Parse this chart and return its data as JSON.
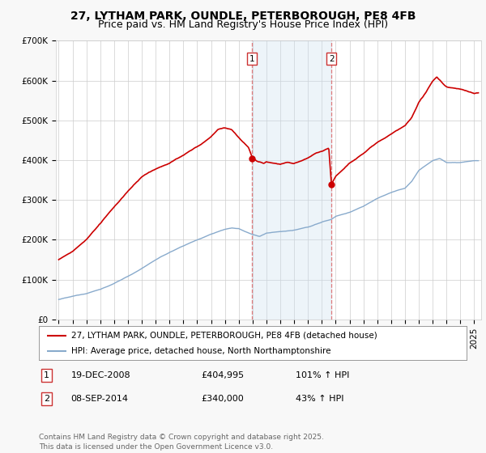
{
  "title": "27, LYTHAM PARK, OUNDLE, PETERBOROUGH, PE8 4FB",
  "subtitle": "Price paid vs. HM Land Registry's House Price Index (HPI)",
  "ylim": [
    0,
    700000
  ],
  "yticks": [
    0,
    100000,
    200000,
    300000,
    400000,
    500000,
    600000,
    700000
  ],
  "ytick_labels": [
    "£0",
    "£100K",
    "£200K",
    "£300K",
    "£400K",
    "£500K",
    "£600K",
    "£700K"
  ],
  "xlim_start": 1994.8,
  "xlim_end": 2025.5,
  "background_color": "#f8f8f8",
  "plot_bg_color": "#ffffff",
  "grid_color": "#cccccc",
  "red_line_color": "#cc0000",
  "blue_line_color": "#88aacc",
  "sale1_date": 2008.97,
  "sale1_price": 404995,
  "sale2_date": 2014.69,
  "sale2_price": 340000,
  "shade_color": "#cce0f0",
  "shade_alpha": 0.35,
  "vline_color": "#dd6666",
  "marker_box_color": "#cc3333",
  "legend_line1": "27, LYTHAM PARK, OUNDLE, PETERBOROUGH, PE8 4FB (detached house)",
  "legend_line2": "HPI: Average price, detached house, North Northamptonshire",
  "table_row1": [
    "1",
    "19-DEC-2008",
    "£404,995",
    "101% ↑ HPI"
  ],
  "table_row2": [
    "2",
    "08-SEP-2014",
    "£340,000",
    "43% ↑ HPI"
  ],
  "footnote": "Contains HM Land Registry data © Crown copyright and database right 2025.\nThis data is licensed under the Open Government Licence v3.0.",
  "title_fontsize": 10,
  "subtitle_fontsize": 9,
  "tick_fontsize": 7.5,
  "legend_fontsize": 7.5,
  "table_fontsize": 8,
  "footnote_fontsize": 6.5
}
